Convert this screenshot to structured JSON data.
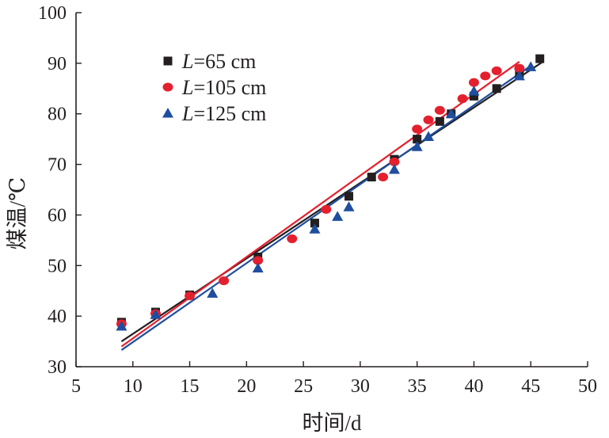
{
  "chart_data": {
    "type": "scatter",
    "xlabel": "时间/d",
    "ylabel": "煤温/℃",
    "xlim": [
      5,
      50
    ],
    "ylim": [
      30,
      100
    ],
    "xticks": [
      "5",
      "10",
      "15",
      "20",
      "25",
      "30",
      "35",
      "40",
      "45",
      "50"
    ],
    "yticks": [
      "30",
      "40",
      "50",
      "60",
      "70",
      "80",
      "90",
      "100"
    ],
    "grid": false,
    "legend_position": "top-left",
    "series": [
      {
        "name_prefix": "L",
        "name_suffix": "=65 cm",
        "marker": "square",
        "color": "#231f20",
        "points": [
          [
            9,
            38.8
          ],
          [
            12,
            40.8
          ],
          [
            15,
            44.2
          ],
          [
            21,
            51.7
          ],
          [
            26,
            58.4
          ],
          [
            29,
            63.7
          ],
          [
            31,
            67.5
          ],
          [
            33,
            71.0
          ],
          [
            35,
            75.0
          ],
          [
            37,
            78.5
          ],
          [
            38,
            80.0
          ],
          [
            40,
            83.5
          ],
          [
            42,
            85.0
          ],
          [
            44,
            88.0
          ],
          [
            45.8,
            90.9
          ]
        ],
        "fit": [
          [
            9,
            35.0
          ],
          [
            46,
            90.2
          ]
        ]
      },
      {
        "name_prefix": "L",
        "name_suffix": "=105 cm",
        "marker": "circle",
        "color": "#e4202e",
        "points": [
          [
            9,
            38.5
          ],
          [
            12,
            40.5
          ],
          [
            15,
            44.0
          ],
          [
            18,
            47.0
          ],
          [
            21,
            51.0
          ],
          [
            24,
            55.3
          ],
          [
            27,
            61.1
          ],
          [
            32,
            67.5
          ],
          [
            33,
            70.5
          ],
          [
            35,
            77.0
          ],
          [
            36,
            78.8
          ],
          [
            37,
            80.7
          ],
          [
            39,
            83.0
          ],
          [
            40,
            86.2
          ],
          [
            41,
            87.5
          ],
          [
            42,
            88.5
          ],
          [
            44,
            89.0
          ]
        ],
        "fit": [
          [
            9,
            34.0
          ],
          [
            44,
            90.3
          ]
        ]
      },
      {
        "name_prefix": "L",
        "name_suffix": "=125 cm",
        "marker": "triangle",
        "color": "#1f4e9f",
        "points": [
          [
            9,
            38.0
          ],
          [
            12,
            40.3
          ],
          [
            17,
            44.5
          ],
          [
            21,
            49.5
          ],
          [
            26,
            57.2
          ],
          [
            28,
            59.7
          ],
          [
            29,
            61.6
          ],
          [
            33,
            69.0
          ],
          [
            35,
            73.5
          ],
          [
            36,
            75.5
          ],
          [
            38,
            80.0
          ],
          [
            40,
            84.5
          ],
          [
            44,
            87.5
          ],
          [
            45,
            89.3
          ]
        ],
        "fit": [
          [
            9,
            33.3
          ],
          [
            45,
            89.5
          ]
        ]
      }
    ]
  }
}
